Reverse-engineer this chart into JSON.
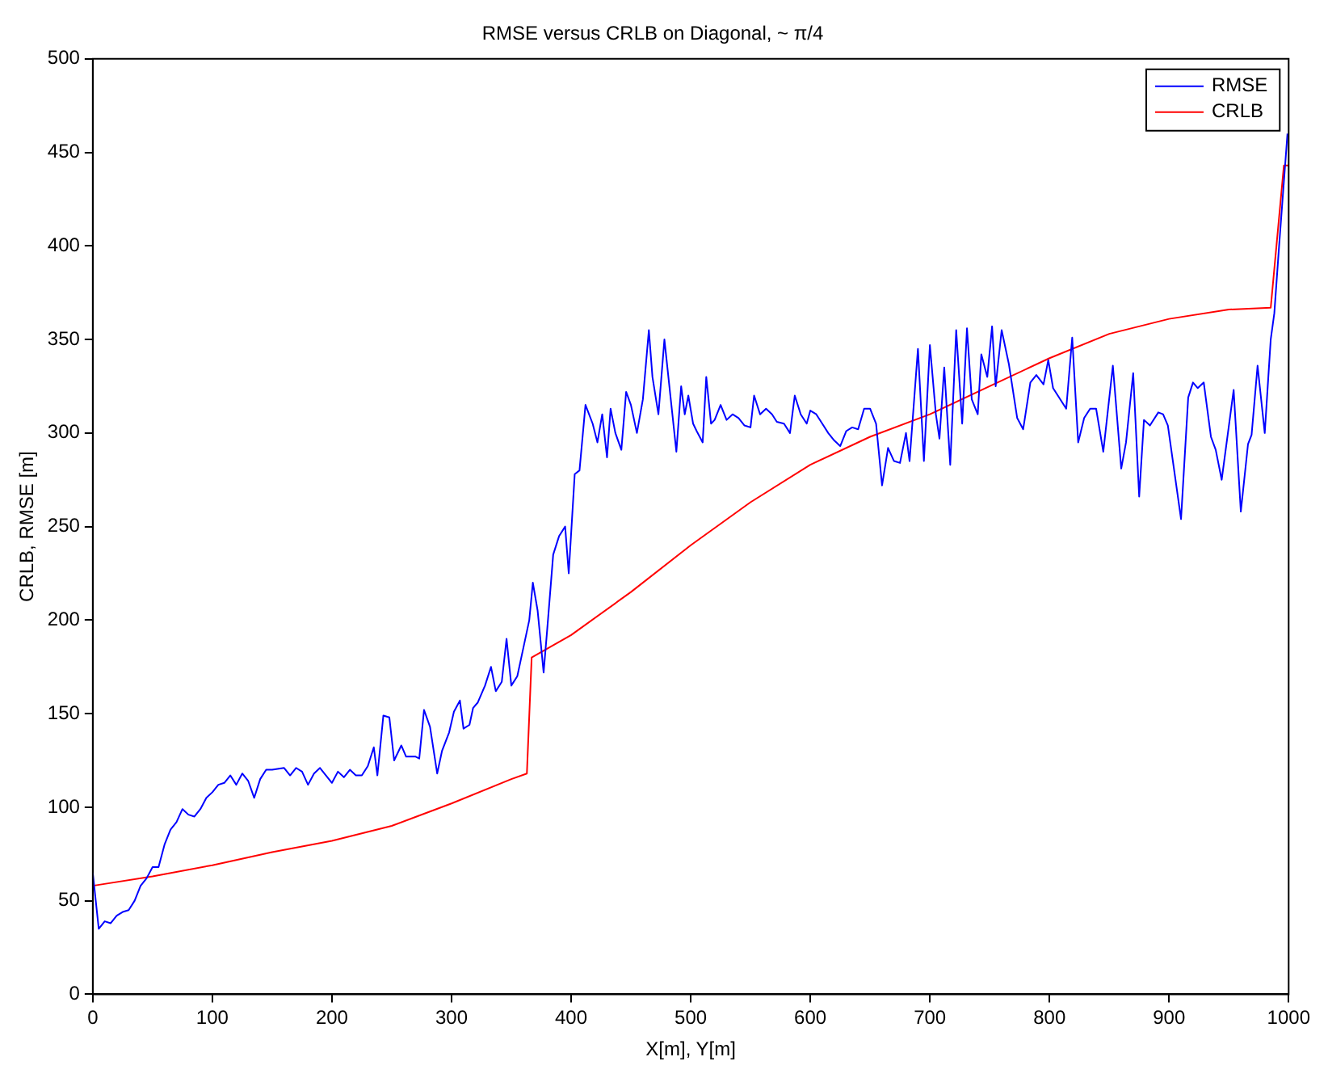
{
  "chart_data": {
    "type": "line",
    "title": "RMSE versus CRLB on Diagonal, ~ π/4",
    "xlabel": "X[m], Y[m]",
    "ylabel": "CRLB, RMSE [m]",
    "xlim": [
      0,
      1000
    ],
    "xticks": [
      0,
      100,
      200,
      300,
      400,
      500,
      600,
      700,
      800,
      900,
      1000
    ],
    "ylim": [
      0,
      500
    ],
    "yticks": [
      0,
      50,
      100,
      150,
      200,
      250,
      300,
      350,
      400,
      450,
      500
    ],
    "grid": false,
    "legend": "top right",
    "marker": "none",
    "line_style": "solid",
    "series": [
      {
        "name": "RMSE",
        "color": "#0000ff",
        "x": [
          0,
          5,
          10,
          15,
          20,
          25,
          30,
          35,
          40,
          45,
          50,
          55,
          60,
          65,
          70,
          75,
          80,
          85,
          90,
          95,
          100,
          105,
          110,
          115,
          120,
          125,
          130,
          135,
          140,
          145,
          150,
          160,
          165,
          170,
          175,
          180,
          185,
          190,
          195,
          200,
          205,
          210,
          215,
          220,
          225,
          230,
          235,
          238,
          243,
          248,
          252,
          258,
          262,
          270,
          273,
          277,
          282,
          288,
          292,
          298,
          302,
          307,
          310,
          315,
          318,
          322,
          328,
          333,
          337,
          342,
          346,
          350,
          355,
          360,
          365,
          368,
          372,
          377,
          380,
          385,
          390,
          395,
          398,
          403,
          407,
          412,
          418,
          422,
          426,
          430,
          433,
          437,
          442,
          446,
          450,
          455,
          460,
          465,
          468,
          473,
          478,
          483,
          488,
          492,
          495,
          498,
          502,
          505,
          510,
          513,
          517,
          520,
          525,
          530,
          535,
          540,
          545,
          550,
          553,
          558,
          563,
          568,
          572,
          578,
          583,
          587,
          592,
          597,
          600,
          605,
          610,
          615,
          620,
          625,
          630,
          635,
          640,
          645,
          650,
          655,
          660,
          665,
          670,
          675,
          680,
          683,
          690,
          695,
          700,
          705,
          708,
          712,
          717,
          722,
          727,
          731,
          735,
          740,
          743,
          748,
          752,
          755,
          760,
          766,
          773,
          778,
          784,
          789,
          795,
          799,
          803,
          814,
          819,
          824,
          829,
          834,
          839,
          845,
          853,
          860,
          864,
          870,
          875,
          879,
          884,
          891,
          895,
          899,
          910,
          916,
          920,
          924,
          929,
          935,
          939,
          944,
          954,
          960,
          966,
          969,
          974,
          980,
          985,
          988,
          992,
          999
        ],
        "values": [
          65,
          35,
          39,
          38,
          42,
          44,
          45,
          50,
          58,
          62,
          68,
          68,
          80,
          88,
          92,
          99,
          96,
          95,
          99,
          105,
          108,
          112,
          113,
          117,
          112,
          118,
          114,
          105,
          115,
          120,
          120,
          121,
          117,
          121,
          119,
          112,
          118,
          121,
          117,
          113,
          119,
          116,
          120,
          117,
          117,
          122,
          132,
          117,
          149,
          148,
          125,
          133,
          127,
          127,
          126,
          152,
          143,
          118,
          130,
          140,
          151,
          157,
          142,
          144,
          153,
          156,
          165,
          175,
          162,
          167,
          190,
          165,
          170,
          185,
          200,
          220,
          205,
          172,
          195,
          235,
          245,
          250,
          225,
          278,
          280,
          315,
          305,
          295,
          310,
          287,
          313,
          300,
          291,
          322,
          315,
          300,
          318,
          355,
          330,
          310,
          350,
          320,
          290,
          325,
          310,
          320,
          305,
          301,
          295,
          330,
          305,
          307,
          315,
          307,
          310,
          308,
          304,
          303,
          320,
          310,
          313,
          310,
          306,
          305,
          300,
          320,
          310,
          305,
          312,
          310,
          305,
          300,
          296,
          293,
          301,
          303,
          302,
          313,
          313,
          305,
          272,
          292,
          285,
          284,
          300,
          285,
          345,
          285,
          347,
          310,
          297,
          335,
          283,
          355,
          305,
          356,
          318,
          310,
          342,
          330,
          357,
          325,
          355,
          337,
          308,
          302,
          327,
          331,
          326,
          339,
          324,
          313,
          351,
          295,
          308,
          313,
          313,
          290,
          336,
          281,
          295,
          332,
          266,
          307,
          304,
          311,
          310,
          304,
          254,
          319,
          327,
          324,
          327,
          298,
          291,
          275,
          323,
          258,
          294,
          299,
          336,
          300,
          350,
          364,
          400,
          460
        ]
      },
      {
        "name": "CRLB",
        "color": "#ff0000",
        "x": [
          0,
          50,
          100,
          150,
          200,
          250,
          300,
          350,
          363,
          367,
          400,
          450,
          500,
          550,
          600,
          650,
          700,
          750,
          800,
          850,
          900,
          950,
          985,
          996,
          1000
        ],
        "values": [
          58,
          63,
          69,
          76,
          82,
          90,
          102,
          115,
          118,
          180,
          192,
          215,
          240,
          263,
          283,
          298,
          310,
          325,
          340,
          353,
          361,
          366,
          367,
          443,
          443
        ]
      }
    ]
  }
}
